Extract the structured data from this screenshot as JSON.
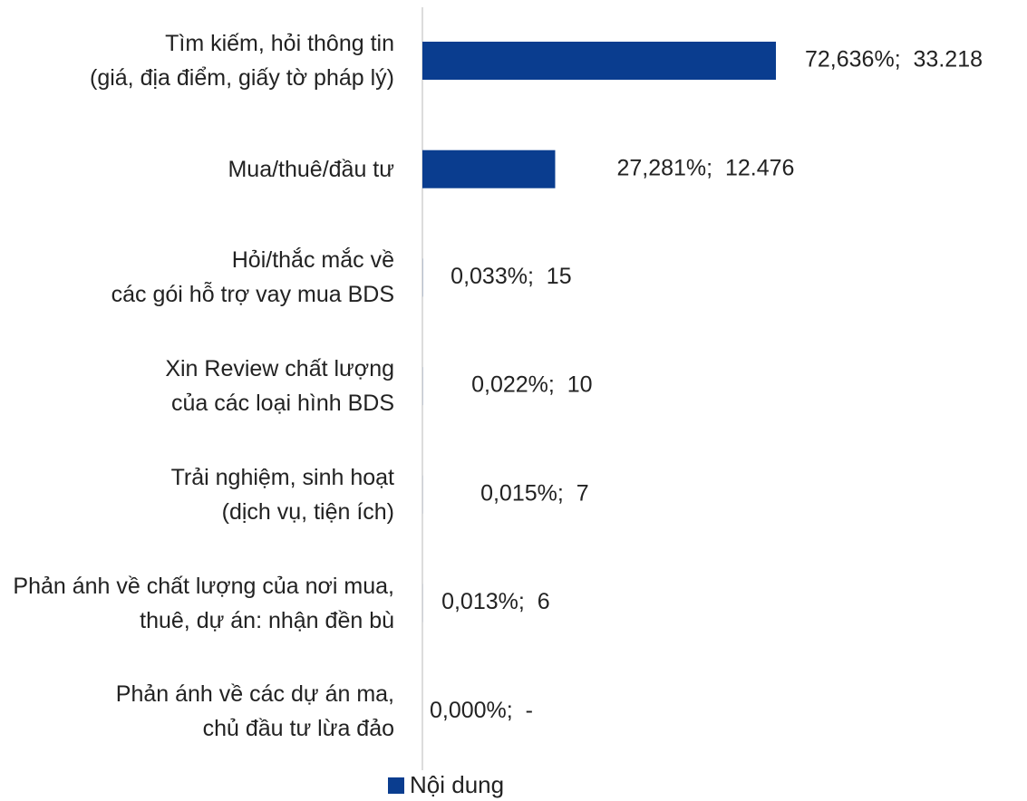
{
  "chart_data": {
    "type": "hbar",
    "categories": [
      "Tìm kiếm, hỏi thông tin\n(giá, địa điểm, giấy tờ pháp lý)",
      "Mua/thuê/đầu tư",
      "Hỏi/thắc mắc về\ncác gói hỗ trợ vay mua BDS",
      "Xin Review chất lượng\ncủa các loại hình BDS",
      "Trải nghiệm, sinh hoạt\n(dịch vụ, tiện ích)",
      "Phản ánh về chất lượng của nơi mua,\nthuê, dự án: nhận đền bù",
      "Phản ánh về các dự án ma,\nchủ đầu tư lừa đảo"
    ],
    "series": [
      {
        "name": "Nội dung",
        "color": "#0a3d8f",
        "values": [
          72.636,
          27.281,
          0.033,
          0.022,
          0.015,
          0.013,
          0.0
        ],
        "value_labels": [
          "72,636%;  33.218",
          "27,281%;  12.476",
          "0,033%;  15",
          "0,022%;  10",
          "0,015%;  7",
          "0,013%;  6",
          "0,000%;  -"
        ]
      }
    ],
    "legend": "bottom"
  }
}
